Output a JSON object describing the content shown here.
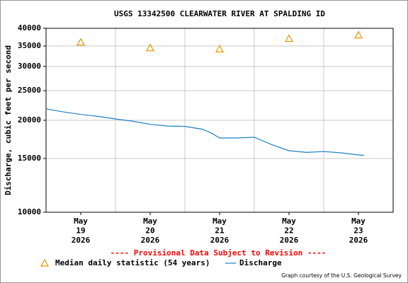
{
  "chart_data": {
    "type": "line",
    "title": "USGS 13342500 CLEARWATER RIVER AT SPALDING ID",
    "y_label": "Discharge, cubic feet per second",
    "notice": "---- Provisional Data Subject to Revision ----",
    "notice_color": "#ff0000",
    "credit": "Graph courtesy of the U.S. Geological Survey",
    "log_y": true,
    "grid": true,
    "ylim": [
      10000,
      40000
    ],
    "yticks": [
      10000,
      15000,
      20000,
      25000,
      30000,
      35000,
      40000
    ],
    "xlim": [
      "2026-05-19T00:00",
      "2026-05-24T00:00"
    ],
    "xticks": [
      {
        "value": "2026-05-19T12:00",
        "label": "May 19 2026"
      },
      {
        "value": "2026-05-20T12:00",
        "label": "May 20 2026"
      },
      {
        "value": "2026-05-21T12:00",
        "label": "May 21 2026"
      },
      {
        "value": "2026-05-22T12:00",
        "label": "May 22 2026"
      },
      {
        "value": "2026-05-23T12:00",
        "label": "May 23 2026"
      }
    ],
    "xgrid": [
      "2026-05-20T00:00",
      "2026-05-21T00:00",
      "2026-05-22T00:00",
      "2026-05-23T00:00"
    ],
    "series": [
      {
        "name": "Median daily statistic (54 years)",
        "color": "#e69500",
        "marker": "triangle",
        "x": [
          "2026-05-19T12:00",
          "2026-05-20T12:00",
          "2026-05-21T12:00",
          "2026-05-22T12:00",
          "2026-05-23T12:00"
        ],
        "values": [
          36000,
          34500,
          34200,
          37000,
          38000
        ]
      },
      {
        "name": "Discharge",
        "color": "#1f7fc0",
        "marker": "line",
        "x": [
          "2026-05-19T00:00",
          "2026-05-19T06:00",
          "2026-05-19T12:00",
          "2026-05-19T18:00",
          "2026-05-20T00:00",
          "2026-05-20T06:00",
          "2026-05-20T12:00",
          "2026-05-20T18:00",
          "2026-05-21T00:00",
          "2026-05-21T06:00",
          "2026-05-21T09:00",
          "2026-05-21T12:00",
          "2026-05-21T18:00",
          "2026-05-22T00:00",
          "2026-05-22T06:00",
          "2026-05-22T12:00",
          "2026-05-22T18:00",
          "2026-05-23T00:00",
          "2026-05-23T06:00",
          "2026-05-23T12:00",
          "2026-05-23T14:00"
        ],
        "values": [
          21800,
          21300,
          20900,
          20600,
          20200,
          19850,
          19400,
          19150,
          19100,
          18700,
          18200,
          17500,
          17500,
          17600,
          16650,
          15900,
          15700,
          15800,
          15650,
          15400,
          15350
        ]
      }
    ]
  }
}
